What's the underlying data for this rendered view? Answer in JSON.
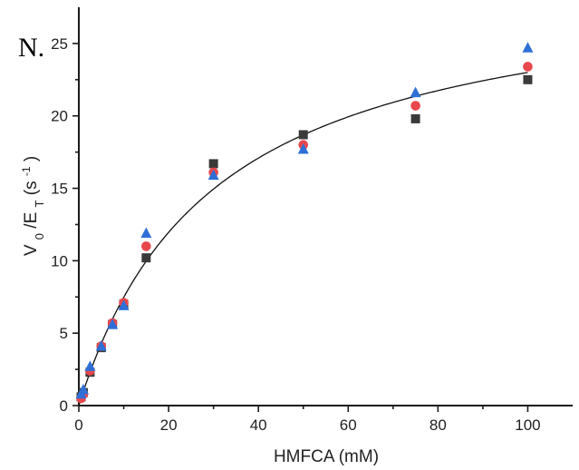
{
  "panel_label": "N.",
  "chart_data": {
    "type": "scatter",
    "title": "",
    "xlabel": "HMFCA (mM)",
    "ylabel": "V0/ET (s-1)",
    "ylabel_parts": {
      "v": "V",
      "v_sub": "0",
      "slash": "/E",
      "e_sub": "T",
      "unit_open": " (s",
      "unit_exp": "-1",
      "unit_close": ")"
    },
    "xlim": [
      0,
      110
    ],
    "ylim": [
      0,
      27.5
    ],
    "x_ticks": [
      0,
      20,
      40,
      60,
      80,
      100
    ],
    "y_ticks": [
      0,
      5,
      10,
      15,
      20,
      25
    ],
    "grid": false,
    "legend": "none",
    "series": [
      {
        "marker": "square",
        "color": "#3a3a3a",
        "points": [
          [
            0.5,
            0.6
          ],
          [
            1,
            0.9
          ],
          [
            2.5,
            2.3
          ],
          [
            5,
            4.0
          ],
          [
            7.5,
            5.6
          ],
          [
            10,
            7.0
          ],
          [
            15,
            10.2
          ],
          [
            30,
            16.7
          ],
          [
            50,
            18.7
          ],
          [
            75,
            19.8
          ],
          [
            100,
            22.5
          ]
        ]
      },
      {
        "marker": "circle",
        "color": "#e8474c",
        "points": [
          [
            0.5,
            0.5
          ],
          [
            1,
            0.8
          ],
          [
            2.5,
            2.4
          ],
          [
            5,
            4.1
          ],
          [
            7.5,
            5.7
          ],
          [
            10,
            7.1
          ],
          [
            15,
            11.0
          ],
          [
            30,
            16.1
          ],
          [
            50,
            18.0
          ],
          [
            75,
            20.7
          ],
          [
            100,
            23.4
          ]
        ]
      },
      {
        "marker": "triangle",
        "color": "#2f6fd6",
        "points": [
          [
            0.5,
            0.8
          ],
          [
            1,
            1.1
          ],
          [
            2.5,
            2.7
          ],
          [
            5,
            4.1
          ],
          [
            7.5,
            5.6
          ],
          [
            10,
            6.9
          ],
          [
            15,
            11.9
          ],
          [
            30,
            15.9
          ],
          [
            50,
            17.7
          ],
          [
            75,
            21.6
          ],
          [
            100,
            24.7
          ]
        ]
      }
    ],
    "fit": {
      "type": "michaelis-menten",
      "vmax": 29.9,
      "km": 30
    }
  }
}
